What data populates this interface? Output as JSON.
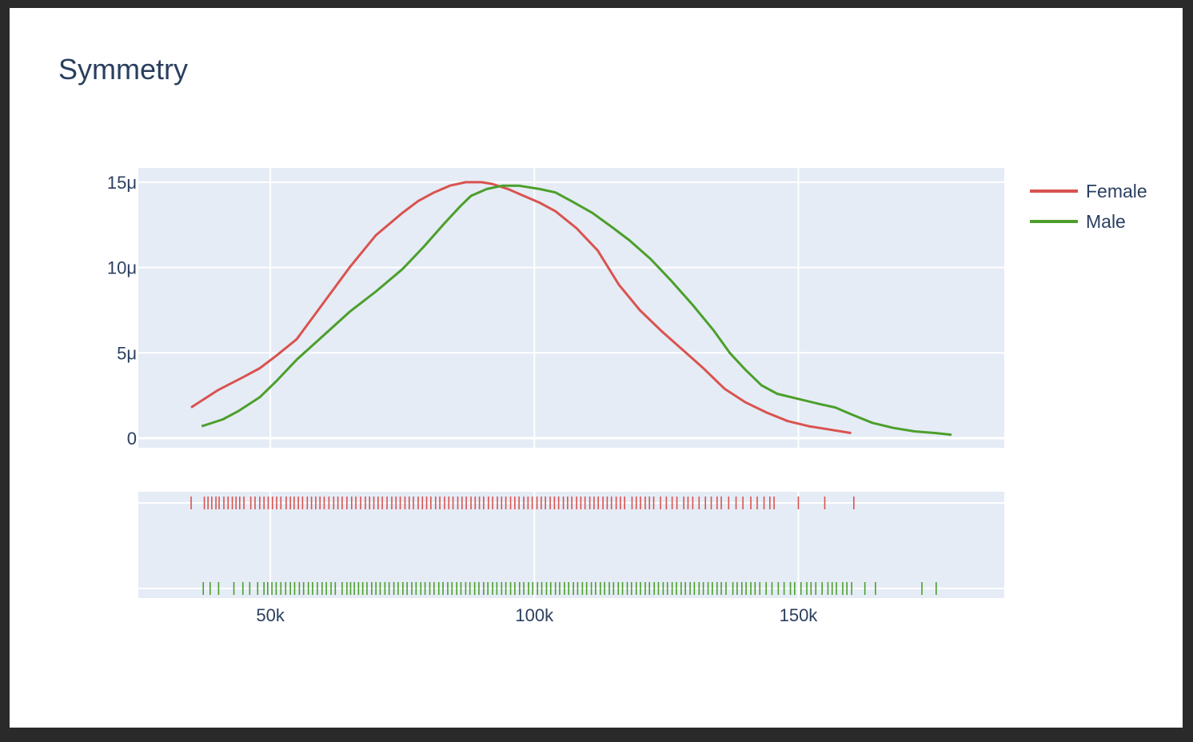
{
  "chart_data": {
    "type": "line",
    "title": "Symmetry",
    "xlabel": "",
    "ylabel": "",
    "xlim": [
      25000,
      189000
    ],
    "ylim": [
      0,
      15.5
    ],
    "y_unit_label": "μ",
    "x_ticks": [
      {
        "value": 50000,
        "label": "50k"
      },
      {
        "value": 100000,
        "label": "100k"
      },
      {
        "value": 150000,
        "label": "150k"
      }
    ],
    "y_ticks": [
      {
        "value": 0,
        "label": "0"
      },
      {
        "value": 5,
        "label": "5μ"
      },
      {
        "value": 10,
        "label": "10μ"
      },
      {
        "value": 15,
        "label": "15μ"
      }
    ],
    "grid": true,
    "legend": "top-right",
    "colors": {
      "Female": "#d9534f",
      "Male": "#4c9f2b",
      "plot_bg": "#e5ecf6",
      "text": "#2a3f5f"
    },
    "series": [
      {
        "name": "Female",
        "x": [
          35000,
          40000,
          45000,
          48000,
          51000,
          55000,
          60000,
          65000,
          70000,
          75000,
          78000,
          81000,
          84000,
          87000,
          90000,
          92000,
          95000,
          98000,
          101000,
          104000,
          108000,
          112000,
          116000,
          120000,
          124000,
          128000,
          132000,
          136000,
          140000,
          144000,
          148000,
          152000,
          156000,
          160000
        ],
        "y": [
          1.8,
          2.8,
          3.6,
          4.1,
          4.8,
          5.8,
          7.9,
          10.0,
          11.9,
          13.2,
          13.9,
          14.4,
          14.8,
          15.0,
          15.0,
          14.9,
          14.6,
          14.2,
          13.8,
          13.3,
          12.3,
          11.0,
          9.0,
          7.5,
          6.3,
          5.2,
          4.1,
          2.9,
          2.1,
          1.5,
          1.0,
          0.7,
          0.5,
          0.3
        ]
      },
      {
        "name": "Male",
        "x": [
          37000,
          41000,
          44000,
          48000,
          51000,
          55000,
          60000,
          65000,
          70000,
          75000,
          79000,
          83000,
          86000,
          88000,
          91000,
          94000,
          97000,
          101000,
          104000,
          107000,
          111000,
          115000,
          118000,
          122000,
          126000,
          130000,
          134000,
          137000,
          140000,
          143000,
          146000,
          150000,
          154000,
          157000,
          160000,
          164000,
          168000,
          172000,
          176000,
          179000
        ],
        "y": [
          0.7,
          1.1,
          1.6,
          2.4,
          3.3,
          4.6,
          6.0,
          7.4,
          8.6,
          9.9,
          11.2,
          12.6,
          13.6,
          14.2,
          14.6,
          14.8,
          14.8,
          14.6,
          14.4,
          13.9,
          13.2,
          12.3,
          11.6,
          10.5,
          9.2,
          7.8,
          6.3,
          5.0,
          4.0,
          3.1,
          2.6,
          2.3,
          2.0,
          1.8,
          1.4,
          0.9,
          0.6,
          0.4,
          0.3,
          0.2
        ]
      }
    ],
    "rug": [
      {
        "name": "Female",
        "x": [
          35000,
          37500,
          38200,
          38900,
          39700,
          40300,
          41200,
          42000,
          42800,
          43500,
          44200,
          45000,
          46300,
          47100,
          48000,
          48800,
          49600,
          50400,
          51200,
          52000,
          53000,
          53800,
          54500,
          55300,
          56100,
          57000,
          57800,
          58600,
          59400,
          60200,
          61100,
          62000,
          62800,
          63600,
          64500,
          65400,
          66200,
          67100,
          68000,
          68800,
          69600,
          70400,
          71200,
          72100,
          73000,
          73800,
          74600,
          75500,
          76300,
          77100,
          78000,
          78800,
          79600,
          80400,
          81300,
          82100,
          83000,
          83800,
          84600,
          85500,
          86300,
          87100,
          88000,
          88800,
          89600,
          90400,
          91300,
          92100,
          93000,
          93800,
          94600,
          95500,
          96300,
          97100,
          98000,
          98800,
          99600,
          100500,
          101300,
          102100,
          103000,
          103800,
          104600,
          105500,
          106300,
          107100,
          108000,
          108800,
          109600,
          110500,
          111300,
          112100,
          113000,
          113800,
          114600,
          115500,
          116300,
          117100,
          118500,
          119300,
          120100,
          121000,
          121800,
          122600,
          123900,
          125000,
          126100,
          127000,
          128300,
          129100,
          130000,
          131200,
          132400,
          133500,
          134600,
          135400,
          136800,
          138200,
          139500,
          141000,
          142200,
          143500,
          144600,
          145400,
          150000,
          155000,
          160500
        ]
      },
      {
        "name": "Male",
        "x": [
          37300,
          38600,
          40200,
          43100,
          44800,
          46100,
          47600,
          48800,
          49500,
          50300,
          51100,
          52000,
          52900,
          53800,
          54600,
          55500,
          56300,
          57200,
          58000,
          58900,
          59800,
          60600,
          61500,
          62300,
          63600,
          64500,
          65200,
          65900,
          66700,
          67500,
          68300,
          69200,
          70000,
          70800,
          71700,
          72500,
          73400,
          74200,
          75100,
          75900,
          76800,
          77600,
          78500,
          79300,
          80200,
          81000,
          81900,
          82700,
          83600,
          84400,
          85300,
          86100,
          87000,
          87800,
          88700,
          89500,
          90400,
          91200,
          92100,
          92900,
          93800,
          94600,
          95500,
          96300,
          97200,
          98000,
          98900,
          99700,
          100600,
          101400,
          102300,
          103100,
          104000,
          104800,
          105700,
          106500,
          107400,
          108200,
          109100,
          109900,
          110800,
          111600,
          112500,
          113300,
          114200,
          115000,
          115900,
          116700,
          117600,
          118400,
          119300,
          120100,
          121000,
          121800,
          122700,
          123500,
          124400,
          125200,
          126100,
          126900,
          127800,
          128600,
          129500,
          130300,
          131200,
          132000,
          132900,
          133700,
          134600,
          135400,
          136300,
          137600,
          138400,
          139300,
          140100,
          141000,
          141800,
          142700,
          143900,
          145000,
          146200,
          147300,
          148500,
          149300,
          150500,
          151600,
          152400,
          153300,
          154500,
          155600,
          156400,
          157200,
          158400,
          159200,
          160100,
          162600,
          164600,
          173400,
          176100
        ]
      }
    ]
  },
  "legend": {
    "items": [
      {
        "label": "Female"
      },
      {
        "label": "Male"
      }
    ]
  }
}
